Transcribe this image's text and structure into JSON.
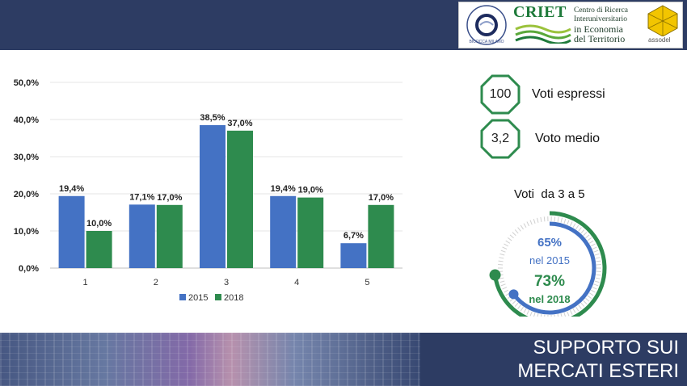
{
  "logos": {
    "criet_name": "CRIET",
    "criet_subtitle": [
      "Centro di Ricerca",
      "Interuniversitario",
      "in Economia",
      "del Territorio"
    ],
    "milano_seal_text": "BICOCCA MILANO",
    "assodel_name": "assodel"
  },
  "stats": [
    {
      "value": "100",
      "label": "Voti espressi"
    },
    {
      "value": "3,2",
      "label": "Voto medio"
    }
  ],
  "gauge": {
    "title": "Voti  da 3 a 5",
    "pct_2015": "65%",
    "label_2015": "nel 2015",
    "pct_2018": "73%",
    "label_2018": "nel 2018",
    "value_2015": 0.65,
    "value_2018": 0.73,
    "colors": {
      "2015": "#4472c4",
      "2018": "#2e8b4e",
      "track": "#d0d0d0"
    }
  },
  "footer": {
    "title_line1": "SUPPORTO SUI",
    "title_line2": "MERCATI ESTERI"
  },
  "chart_data": {
    "type": "bar",
    "categories": [
      "1",
      "2",
      "3",
      "4",
      "5"
    ],
    "series": [
      {
        "name": "2015",
        "values": [
          19.4,
          17.1,
          38.5,
          19.4,
          6.7
        ],
        "labels": [
          "19,4%",
          "17,1%",
          "38,5%",
          "19,4%",
          "6,7%"
        ],
        "color": "#4472c4"
      },
      {
        "name": "2018",
        "values": [
          10.0,
          17.0,
          37.0,
          19.0,
          17.0
        ],
        "labels": [
          "10,0%",
          "17,0%",
          "37,0%",
          "19,0%",
          "17,0%"
        ],
        "color": "#2e8b4e"
      }
    ],
    "yticks": [
      "0,0%",
      "10,0%",
      "20,0%",
      "30,0%",
      "40,0%",
      "50,0%"
    ],
    "ylim": [
      0,
      50
    ],
    "legend_position": "bottom",
    "grid": true
  }
}
